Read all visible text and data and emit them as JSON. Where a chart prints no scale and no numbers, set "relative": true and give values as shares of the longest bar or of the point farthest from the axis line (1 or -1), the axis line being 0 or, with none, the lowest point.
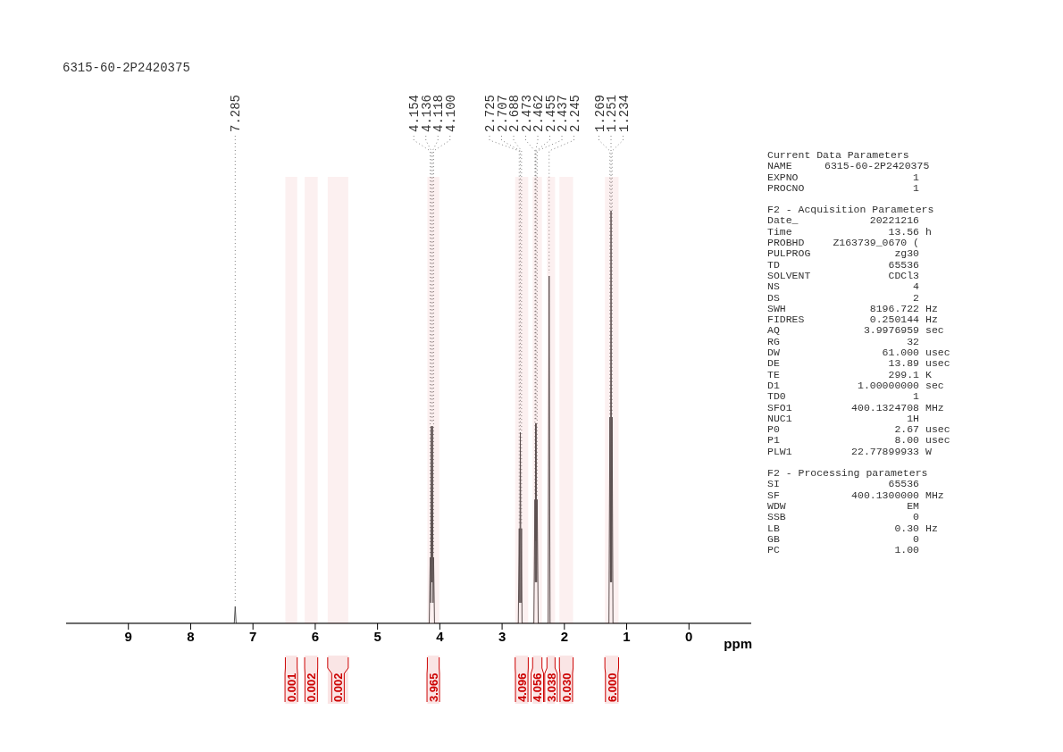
{
  "chart_data": [
    {
      "type": "line",
      "title": "6315-60-2P2420375",
      "xlabel": "ppm",
      "relative": true,
      "color": "#555555",
      "marker": "none",
      "x": [
        10,
        7.3,
        7.285,
        7.27,
        4.17,
        4.154,
        4.145,
        4.136,
        4.127,
        4.118,
        4.109,
        4.1,
        4.085,
        2.74,
        2.725,
        2.716,
        2.707,
        2.697,
        2.688,
        2.68,
        2.49,
        2.473,
        2.467,
        2.462,
        2.458,
        2.455,
        2.446,
        2.437,
        2.42,
        2.26,
        2.245,
        2.23,
        1.285,
        1.269,
        1.26,
        1.251,
        1.242,
        1.234,
        1.22,
        -1
      ],
      "values": [
        0,
        0,
        0.041,
        0,
        0,
        0.16,
        0.05,
        0.478,
        0.1,
        0.478,
        0.05,
        0.16,
        0,
        0,
        0.23,
        0.05,
        0.463,
        0.05,
        0.23,
        0,
        0,
        0.3,
        0.1,
        0.485,
        0.2,
        0.485,
        0.1,
        0.3,
        0,
        0,
        0.842,
        0,
        0,
        0.5,
        0.1,
        1.0,
        0.1,
        0.5,
        0,
        0
      ],
      "xlim": [
        10,
        -1
      ],
      "xticks": [
        9,
        8,
        7,
        6,
        5,
        4,
        3,
        2,
        1,
        0
      ],
      "annotations": [
        {
          "text": "7.285",
          "x": 7.285,
          "y": 0.041
        },
        {
          "text": "4.154",
          "x": 4.154,
          "y": 0.16
        },
        {
          "text": "4.136",
          "x": 4.136,
          "y": 0.478
        },
        {
          "text": "4.118",
          "x": 4.118,
          "y": 0.478
        },
        {
          "text": "4.100",
          "x": 4.1,
          "y": 0.16
        },
        {
          "text": "2.725",
          "x": 2.725,
          "y": 0.23
        },
        {
          "text": "2.707",
          "x": 2.707,
          "y": 0.463
        },
        {
          "text": "2.688",
          "x": 2.688,
          "y": 0.23
        },
        {
          "text": "2.473",
          "x": 2.473,
          "y": 0.3
        },
        {
          "text": "2.462",
          "x": 2.462,
          "y": 0.485
        },
        {
          "text": "2.455",
          "x": 2.455,
          "y": 0.485
        },
        {
          "text": "2.437",
          "x": 2.437,
          "y": 0.3
        },
        {
          "text": "2.245",
          "x": 2.245,
          "y": 0.842
        },
        {
          "text": "1.269",
          "x": 1.269,
          "y": 0.5
        },
        {
          "text": "1.251",
          "x": 1.251,
          "y": 1.0
        },
        {
          "text": "1.234",
          "x": 1.234,
          "y": 0.5
        }
      ],
      "bands": [
        {
          "axis": "x",
          "from": 6.48,
          "to": 6.29,
          "label": "0.001",
          "color": "#cc0000"
        },
        {
          "axis": "x",
          "from": 6.17,
          "to": 5.96,
          "label": "0.002",
          "color": "#cc0000"
        },
        {
          "axis": "x",
          "from": 5.8,
          "to": 5.47,
          "label": "0.002",
          "color": "#cc0000"
        },
        {
          "axis": "x",
          "from": 4.2,
          "to": 4.01,
          "label": "3.965",
          "color": "#cc0000"
        },
        {
          "axis": "x",
          "from": 2.79,
          "to": 2.58,
          "label": "4.096",
          "color": "#cc0000"
        },
        {
          "axis": "x",
          "from": 2.51,
          "to": 2.36,
          "label": "4.056",
          "color": "#cc0000"
        },
        {
          "axis": "x",
          "from": 2.28,
          "to": 2.15,
          "label": "3.038",
          "color": "#cc0000"
        },
        {
          "axis": "x",
          "from": 2.08,
          "to": 1.86,
          "label": "0.030",
          "color": "#cc0000"
        },
        {
          "axis": "x",
          "from": 1.35,
          "to": 1.13,
          "label": "6.000",
          "color": "#cc0000"
        }
      ]
    },
    {
      "type": "other",
      "annotations": [
        "Current Data Parameters",
        "NAME\t6315-60-2P2420375",
        "EXPNO\t1",
        "PROCNO\t1",
        "F2 - Acquisition Parameters",
        "Date_\t20221216",
        "Time\t13.56\th",
        "PROBHD\tZ163739_0670 (",
        "PULPROG\tzg30",
        "TD\t65536",
        "SOLVENT\tCDCl3",
        "NS\t4",
        "DS\t2",
        "SWH\t8196.722\tHz",
        "FIDRES\t0.250144\tHz",
        "AQ\t3.9976959\tsec",
        "RG\t32",
        "DW\t61.000\tusec",
        "DE\t13.89\tusec",
        "TE\t299.1\tK",
        "D1\t1.00000000\tsec",
        "TD0\t1",
        "SFO1\t400.1324708\tMHz",
        "NUC1\t1H",
        "P0\t2.67\tusec",
        "P1\t8.00\tusec",
        "PLW1\t22.77899933\tW",
        "F2 - Processing parameters",
        "SI\t65536",
        "SF\t400.1300000\tMHz",
        "WDW\tEM",
        "SSB\t0",
        "LB\t0.30\tHz",
        "GB\t0",
        "PC\t1.00"
      ]
    }
  ]
}
